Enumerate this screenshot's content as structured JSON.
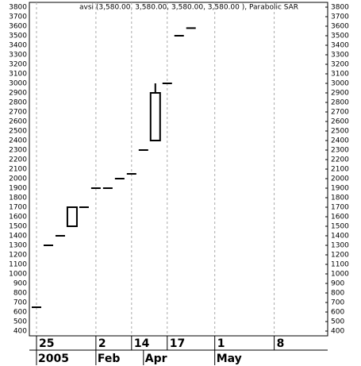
{
  "chart_data": {
    "type": "candlestick",
    "title": "avsi (3,580.00, 3,580.00, 3,580.00, 3,580.00 ), Parabolic SAR",
    "x": [
      0,
      1,
      2,
      3,
      4,
      5,
      6,
      7,
      8,
      9,
      10,
      11,
      12,
      13
    ],
    "open": [
      650,
      1300,
      1400,
      1500,
      1700,
      1900,
      1900,
      2000,
      2050,
      2300,
      2400,
      3000,
      3500,
      3580
    ],
    "high": [
      650,
      1300,
      1400,
      1700,
      1700,
      1900,
      1900,
      2000,
      2050,
      2300,
      3000,
      3000,
      3500,
      3580
    ],
    "low": [
      650,
      1300,
      1400,
      1500,
      1700,
      1900,
      1900,
      2000,
      2050,
      2300,
      2400,
      3000,
      3500,
      3580
    ],
    "close": [
      650,
      1300,
      1400,
      1700,
      1700,
      1900,
      1900,
      2000,
      2050,
      2300,
      2900,
      3000,
      3500,
      3580
    ],
    "color": "#000000",
    "xlim": [
      -0.6,
      24.5
    ],
    "xticks": [
      {
        "value": 0,
        "label": "25"
      },
      {
        "value": 5,
        "label": "2"
      },
      {
        "value": 8,
        "label": "14"
      },
      {
        "value": 11,
        "label": "17"
      },
      {
        "value": 15,
        "label": "1"
      },
      {
        "value": 20,
        "label": "8"
      }
    ],
    "period_ticks": [
      {
        "value": 0,
        "label": "2005"
      },
      {
        "value": 5,
        "label": "Feb"
      },
      {
        "value": 9,
        "label": "Apr"
      },
      {
        "value": 15,
        "label": "May"
      }
    ],
    "ylim": [
      350,
      3850
    ],
    "yticks": [
      400,
      500,
      600,
      700,
      800,
      900,
      1000,
      1100,
      1200,
      1300,
      1400,
      1500,
      1600,
      1700,
      1800,
      1900,
      2000,
      2100,
      2200,
      2300,
      2400,
      2500,
      2600,
      2700,
      2800,
      2900,
      3000,
      3100,
      3200,
      3300,
      3400,
      3500,
      3600,
      3700,
      3800
    ],
    "grid": true
  }
}
